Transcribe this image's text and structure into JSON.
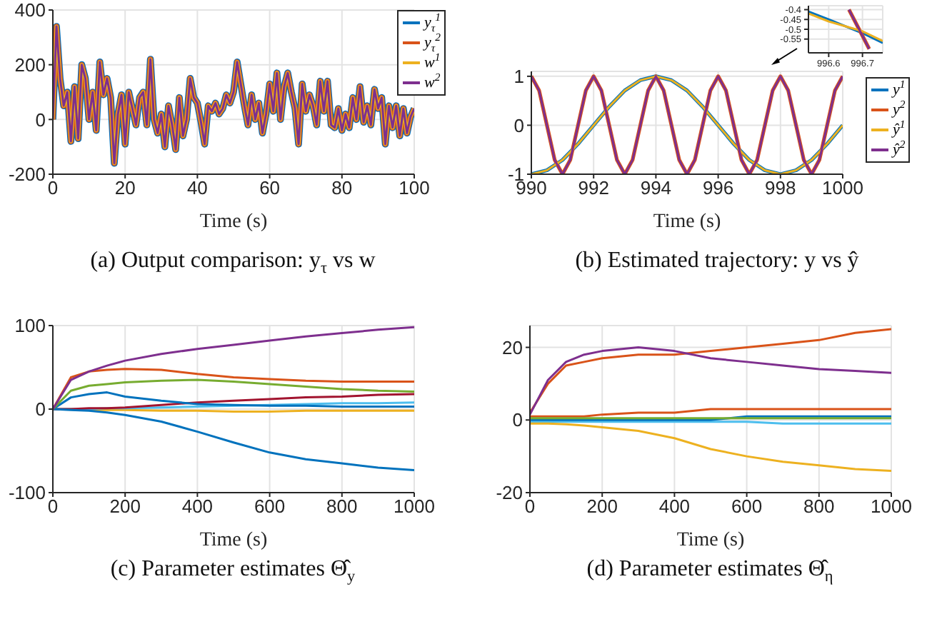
{
  "chart_data": [
    {
      "type": "line",
      "title": "(a) Output comparison: y$_{τ}$ vs w",
      "xlabel": "Time (s)",
      "xlim": [
        0,
        100
      ],
      "xticks": [
        0,
        20,
        40,
        60,
        80,
        100
      ],
      "ylim": [
        -200,
        400
      ],
      "yticks": [
        -200,
        0,
        200,
        400
      ],
      "grid": true,
      "legend": "top right",
      "x": [
        0,
        1,
        2,
        3,
        4,
        5,
        6,
        7,
        8,
        9,
        10,
        11,
        12,
        13,
        14,
        15,
        16,
        17,
        18,
        19,
        20,
        21,
        22,
        23,
        24,
        25,
        26,
        27,
        28,
        29,
        30,
        31,
        32,
        33,
        34,
        35,
        36,
        37,
        38,
        39,
        40,
        41,
        42,
        43,
        44,
        45,
        46,
        47,
        48,
        49,
        50,
        51,
        52,
        53,
        54,
        55,
        56,
        57,
        58,
        59,
        60,
        61,
        62,
        63,
        64,
        65,
        66,
        67,
        68,
        69,
        70,
        71,
        72,
        73,
        74,
        75,
        76,
        77,
        78,
        79,
        80,
        81,
        82,
        83,
        84,
        85,
        86,
        87,
        88,
        89,
        90,
        91,
        92,
        93,
        94,
        95,
        96,
        97,
        98,
        99,
        100
      ],
      "series": [
        {
          "name": "y$_{τ}$$^{1}$",
          "color": "#0072bd",
          "values": [
            0,
            340,
            150,
            50,
            100,
            -80,
            120,
            -70,
            200,
            150,
            0,
            100,
            -40,
            210,
            90,
            150,
            80,
            -160,
            20,
            90,
            -90,
            100,
            40,
            -20,
            80,
            100,
            -20,
            220,
            0,
            -50,
            20,
            -100,
            50,
            -20,
            -110,
            80,
            -60,
            0,
            150,
            80,
            60,
            -10,
            -90,
            50,
            30,
            60,
            20,
            40,
            90,
            60,
            100,
            210,
            130,
            50,
            -20,
            90,
            0,
            60,
            -50,
            20,
            130,
            30,
            170,
            0,
            120,
            170,
            100,
            40,
            -90,
            130,
            30,
            90,
            50,
            -20,
            140,
            30,
            140,
            -20,
            -30,
            40,
            -40,
            20,
            -30,
            80,
            0,
            120,
            -10,
            50,
            -20,
            110,
            40,
            80,
            -90,
            50,
            -30,
            50,
            -60,
            40,
            -50,
            10,
            40
          ]
        },
        {
          "name": "y$_{τ}$$^{2}$",
          "color": "#d95319",
          "values": [
            0,
            340,
            150,
            50,
            100,
            -80,
            120,
            -70,
            200,
            150,
            0,
            100,
            -40,
            210,
            90,
            150,
            80,
            -160,
            20,
            90,
            -90,
            100,
            40,
            -20,
            80,
            100,
            -20,
            220,
            0,
            -50,
            20,
            -100,
            50,
            -20,
            -110,
            80,
            -60,
            0,
            150,
            80,
            60,
            -10,
            -90,
            50,
            30,
            60,
            20,
            40,
            90,
            60,
            100,
            210,
            130,
            50,
            -20,
            90,
            0,
            60,
            -50,
            20,
            130,
            30,
            170,
            0,
            120,
            170,
            100,
            40,
            -90,
            130,
            30,
            90,
            50,
            -20,
            140,
            30,
            140,
            -20,
            -30,
            40,
            -40,
            20,
            -30,
            80,
            0,
            120,
            -10,
            50,
            -20,
            110,
            40,
            80,
            -90,
            50,
            -30,
            50,
            -60,
            40,
            -50,
            10,
            40
          ]
        },
        {
          "name": "w$^{1}$",
          "color": "#edb120",
          "values": [
            0,
            340,
            150,
            50,
            100,
            -80,
            120,
            -70,
            200,
            150,
            0,
            100,
            -40,
            210,
            90,
            150,
            80,
            -160,
            20,
            90,
            -90,
            100,
            40,
            -20,
            80,
            100,
            -20,
            220,
            0,
            -50,
            20,
            -100,
            50,
            -20,
            -110,
            80,
            -60,
            0,
            150,
            80,
            60,
            -10,
            -90,
            50,
            30,
            60,
            20,
            40,
            90,
            60,
            100,
            210,
            130,
            50,
            -20,
            90,
            0,
            60,
            -50,
            20,
            130,
            30,
            170,
            0,
            120,
            170,
            100,
            40,
            -90,
            130,
            30,
            90,
            50,
            -20,
            140,
            30,
            140,
            -20,
            -30,
            40,
            -40,
            20,
            -30,
            80,
            0,
            120,
            -10,
            50,
            -20,
            110,
            40,
            80,
            -90,
            50,
            -30,
            50,
            -60,
            40,
            -50,
            10,
            40
          ]
        },
        {
          "name": "w$^{2}$",
          "color": "#7e2f8e",
          "values": [
            0,
            340,
            150,
            50,
            100,
            -80,
            120,
            -70,
            200,
            150,
            0,
            100,
            -40,
            210,
            90,
            150,
            80,
            -160,
            20,
            90,
            -90,
            100,
            40,
            -20,
            80,
            100,
            -20,
            220,
            0,
            -50,
            20,
            -100,
            50,
            -20,
            -110,
            80,
            -60,
            0,
            150,
            80,
            60,
            -10,
            -90,
            50,
            30,
            60,
            20,
            40,
            90,
            60,
            100,
            210,
            130,
            50,
            -20,
            90,
            0,
            60,
            -50,
            20,
            130,
            30,
            170,
            0,
            120,
            170,
            100,
            40,
            -90,
            130,
            30,
            90,
            50,
            -20,
            140,
            30,
            140,
            -20,
            -30,
            40,
            -40,
            20,
            -30,
            80,
            0,
            120,
            -10,
            50,
            -20,
            110,
            40,
            80,
            -90,
            50,
            -30,
            50,
            -60,
            40,
            -50,
            10,
            40
          ]
        }
      ]
    },
    {
      "type": "line",
      "title": "(b) Estimated trajectory: y vs ŷ",
      "xlabel": "Time (s)",
      "xlim": [
        990,
        1000
      ],
      "xticks": [
        990,
        992,
        994,
        996,
        998,
        1000
      ],
      "ylim": [
        -1,
        1.1
      ],
      "yticks": [
        -1,
        0,
        1
      ],
      "grid": true,
      "legend": "right",
      "series": [
        {
          "name": "y$^{1}$",
          "color": "#0072bd",
          "x": [
            990,
            990.5,
            991,
            991.5,
            992,
            992.5,
            993,
            993.5,
            994,
            994.5,
            995,
            995.5,
            996,
            996.5,
            997,
            997.5,
            998,
            998.5,
            999,
            999.5,
            1000
          ],
          "values": [
            -1,
            -0.92,
            -0.71,
            -0.38,
            0,
            0.38,
            0.71,
            0.92,
            1,
            0.92,
            0.71,
            0.38,
            0,
            -0.38,
            -0.71,
            -0.92,
            -1,
            -0.92,
            -0.71,
            -0.38,
            0
          ]
        },
        {
          "name": "y$^{2}$",
          "color": "#d95319",
          "x": [
            990,
            990.25,
            990.5,
            990.75,
            991,
            991.25,
            991.5,
            991.75,
            992,
            992.25,
            992.5,
            992.75,
            993,
            993.25,
            993.5,
            993.75,
            994,
            994.25,
            994.5,
            994.75,
            995,
            995.25,
            995.5,
            995.75,
            996,
            996.25,
            996.5,
            996.75,
            997,
            997.25,
            997.5,
            997.75,
            998,
            998.25,
            998.5,
            998.75,
            999,
            999.25,
            999.5,
            999.75,
            1000
          ],
          "values": [
            1,
            0.71,
            0,
            -0.71,
            -1,
            -0.71,
            0,
            0.71,
            1,
            0.71,
            0,
            -0.71,
            -1,
            -0.71,
            0,
            0.71,
            1,
            0.71,
            0,
            -0.71,
            -1,
            -0.71,
            0,
            0.71,
            1,
            0.71,
            0,
            -0.71,
            -1,
            -0.71,
            0,
            0.71,
            1,
            0.71,
            0,
            -0.71,
            -1,
            -0.71,
            0,
            0.71,
            1
          ]
        },
        {
          "name": "ŷ$^{1}$",
          "color": "#edb120",
          "x": [
            990,
            990.5,
            991,
            991.5,
            992,
            992.5,
            993,
            993.5,
            994,
            994.5,
            995,
            995.5,
            996,
            996.5,
            997,
            997.5,
            998,
            998.5,
            999,
            999.5,
            1000
          ],
          "values": [
            -1,
            -0.92,
            -0.71,
            -0.38,
            0,
            0.38,
            0.71,
            0.92,
            1,
            0.92,
            0.71,
            0.38,
            0,
            -0.38,
            -0.71,
            -0.92,
            -1,
            -0.92,
            -0.71,
            -0.38,
            0
          ]
        },
        {
          "name": "ŷ$^{2}$",
          "color": "#7e2f8e",
          "x": [
            990,
            990.25,
            990.5,
            990.75,
            991,
            991.25,
            991.5,
            991.75,
            992,
            992.25,
            992.5,
            992.75,
            993,
            993.25,
            993.5,
            993.75,
            994,
            994.25,
            994.5,
            994.75,
            995,
            995.25,
            995.5,
            995.75,
            996,
            996.25,
            996.5,
            996.75,
            997,
            997.25,
            997.5,
            997.75,
            998,
            998.25,
            998.5,
            998.75,
            999,
            999.25,
            999.5,
            999.75,
            1000
          ],
          "values": [
            1,
            0.71,
            0,
            -0.71,
            -1,
            -0.71,
            0,
            0.71,
            1,
            0.71,
            0,
            -0.71,
            -1,
            -0.71,
            0,
            0.71,
            1,
            0.71,
            0,
            -0.71,
            -1,
            -0.71,
            0,
            0.71,
            1,
            0.71,
            0,
            -0.71,
            -1,
            -0.71,
            0,
            0.71,
            1,
            0.71,
            0,
            -0.71,
            -1,
            -0.71,
            0,
            0.71,
            1
          ]
        }
      ]
    },
    {
      "type": "line",
      "xlim": [
        996.54,
        996.76
      ],
      "xticks": [
        996.6,
        996.7
      ],
      "ylim": [
        -0.62,
        -0.38
      ],
      "yticks": [
        -0.4,
        -0.45,
        -0.5,
        -0.55
      ],
      "grid": true,
      "series": [
        {
          "color": "#0072bd",
          "x": [
            996.54,
            996.6,
            996.7,
            996.76
          ],
          "values": [
            -0.41,
            -0.45,
            -0.52,
            -0.57
          ]
        },
        {
          "color": "#d95319",
          "x": [
            996.66,
            996.69,
            996.72
          ],
          "values": [
            -0.4,
            -0.5,
            -0.6
          ]
        },
        {
          "color": "#edb120",
          "x": [
            996.54,
            996.6,
            996.7,
            996.76
          ],
          "values": [
            -0.42,
            -0.46,
            -0.51,
            -0.56
          ]
        },
        {
          "color": "#7e2f8e",
          "x": [
            996.66,
            996.69,
            996.72
          ],
          "values": [
            -0.4,
            -0.5,
            -0.6
          ]
        }
      ]
    },
    {
      "type": "line",
      "title": "(c) Parameter estimates Θ̂$_{y}$",
      "xlabel": "Time (s)",
      "xlim": [
        0,
        1000
      ],
      "xticks": [
        0,
        200,
        400,
        600,
        800,
        1000
      ],
      "ylim": [
        -100,
        100
      ],
      "yticks": [
        -100,
        0,
        100
      ],
      "grid": true,
      "x": [
        0,
        50,
        100,
        150,
        200,
        300,
        400,
        500,
        600,
        700,
        800,
        900,
        1000
      ],
      "series": [
        {
          "color": "#edb120",
          "values": [
            0,
            0,
            -1,
            -1,
            -1,
            -2,
            -2,
            -3,
            -3,
            -2,
            -2,
            -2,
            -2
          ]
        },
        {
          "color": "#4dbeee",
          "values": [
            0,
            0,
            0,
            1,
            1,
            2,
            3,
            4,
            5,
            6,
            7,
            7,
            8
          ]
        },
        {
          "color": "#a2142f",
          "values": [
            0,
            0,
            1,
            1,
            2,
            5,
            8,
            10,
            12,
            14,
            15,
            17,
            18
          ]
        },
        {
          "color": "#0072bd",
          "values": [
            0,
            14,
            18,
            20,
            15,
            10,
            6,
            5,
            4,
            4,
            3,
            3,
            3
          ]
        },
        {
          "color": "#0072bd",
          "values": [
            0,
            -1,
            -2,
            -4,
            -7,
            -15,
            -27,
            -40,
            -52,
            -60,
            -65,
            -70,
            -73
          ]
        },
        {
          "color": "#77ac30",
          "values": [
            0,
            22,
            28,
            30,
            32,
            34,
            35,
            33,
            30,
            27,
            24,
            22,
            21
          ]
        },
        {
          "color": "#d95319",
          "values": [
            0,
            38,
            45,
            47,
            48,
            47,
            42,
            38,
            36,
            34,
            33,
            33,
            33
          ]
        },
        {
          "color": "#7e2f8e",
          "values": [
            0,
            35,
            45,
            52,
            58,
            66,
            72,
            77,
            82,
            87,
            91,
            95,
            98
          ]
        }
      ]
    },
    {
      "type": "line",
      "title": "(d) Parameter estimates Θ̂$_{η}$",
      "xlabel": "Time (s)",
      "xlim": [
        0,
        1000
      ],
      "xticks": [
        0,
        200,
        400,
        600,
        800,
        1000
      ],
      "ylim": [
        -20,
        26
      ],
      "yticks": [
        -20,
        0,
        20
      ],
      "grid": true,
      "x": [
        0,
        50,
        100,
        150,
        200,
        300,
        400,
        500,
        600,
        700,
        800,
        900,
        1000
      ],
      "series": [
        {
          "color": "#4dbeee",
          "values": [
            -0.5,
            -0.5,
            -0.5,
            -0.5,
            -0.5,
            -0.5,
            -0.5,
            -0.5,
            -0.5,
            -1,
            -1,
            -1,
            -1
          ]
        },
        {
          "color": "#0072bd",
          "values": [
            0,
            0,
            0,
            0,
            0,
            0,
            0,
            0,
            1,
            1,
            1,
            1,
            1
          ]
        },
        {
          "color": "#d95319",
          "values": [
            1,
            1,
            1,
            1,
            1.5,
            2,
            2,
            3,
            3,
            3,
            3,
            3,
            3
          ]
        },
        {
          "color": "#77ac30",
          "values": [
            0.5,
            0.5,
            0.5,
            0.5,
            0.5,
            0.5,
            0.5,
            0.5,
            0.5,
            0.5,
            0.5,
            0.5,
            0.5
          ]
        },
        {
          "color": "#edb120",
          "values": [
            -1,
            -1,
            -1.2,
            -1.5,
            -2,
            -3,
            -5,
            -8,
            -10,
            -11.5,
            -12.5,
            -13.5,
            -14
          ]
        },
        {
          "color": "#d95319",
          "values": [
            2,
            10,
            15,
            16,
            17,
            18,
            18,
            19,
            20,
            21,
            22,
            24,
            25
          ]
        },
        {
          "color": "#7e2f8e",
          "values": [
            1.5,
            11,
            16,
            18,
            19,
            20,
            19,
            17,
            16,
            15,
            14,
            13.5,
            13
          ]
        }
      ]
    }
  ]
}
